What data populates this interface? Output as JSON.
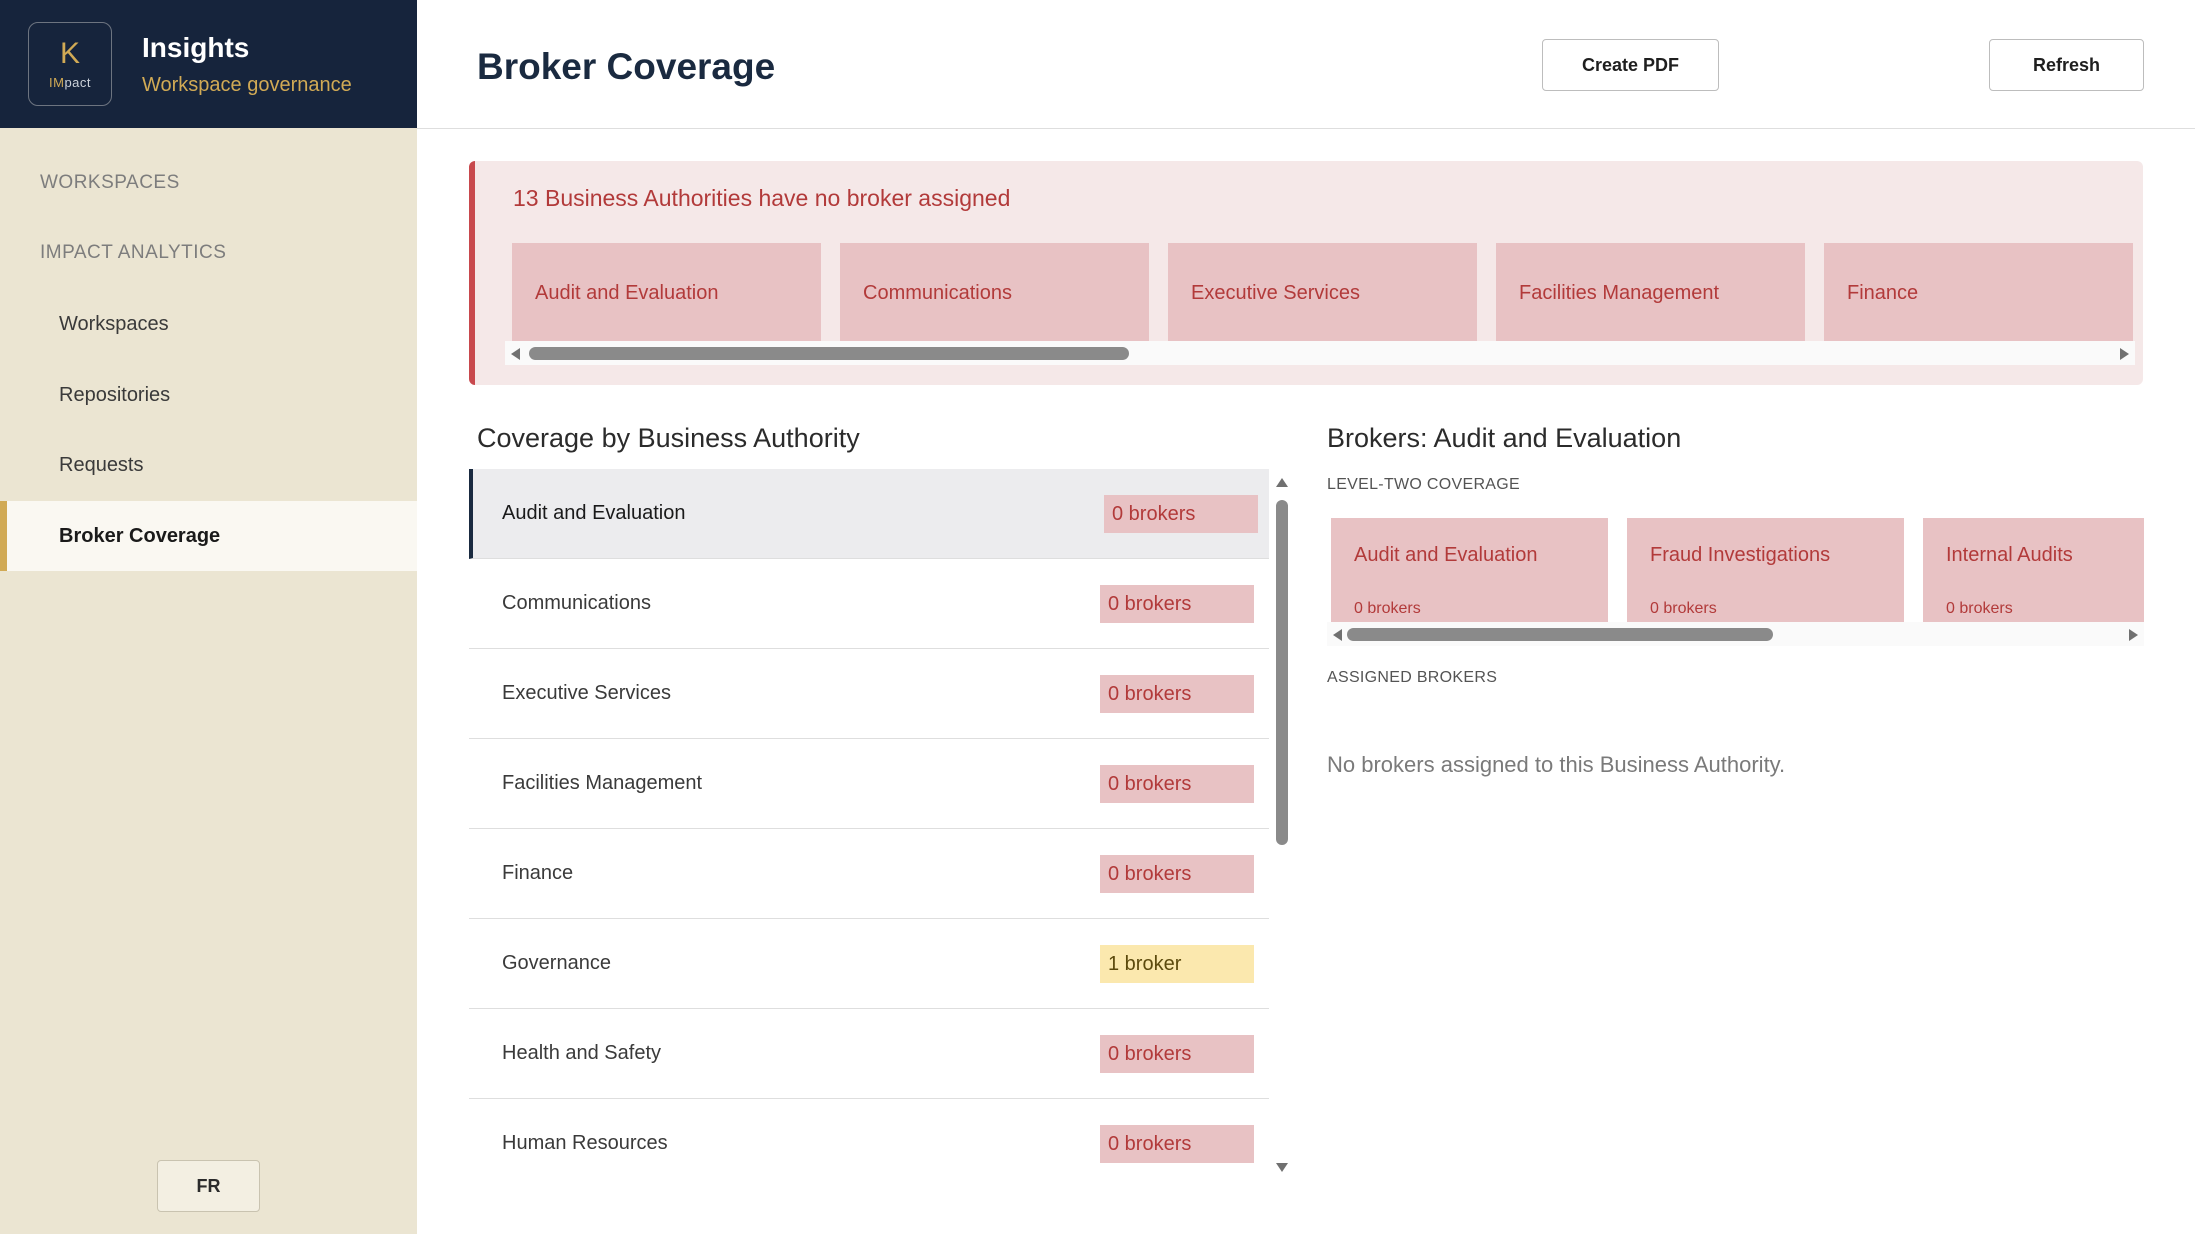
{
  "sidebar": {
    "logo": {
      "letter": "K",
      "sub_prefix": "IM",
      "sub_rest": "pact"
    },
    "app_title": "Insights",
    "app_subtitle": "Workspace governance",
    "sections": [
      "WORKSPACES",
      "IMPACT ANALYTICS"
    ],
    "items": [
      {
        "label": "Workspaces",
        "active": false
      },
      {
        "label": "Repositories",
        "active": false
      },
      {
        "label": "Requests",
        "active": false
      },
      {
        "label": "Broker Coverage",
        "active": true
      }
    ],
    "language_button": "FR"
  },
  "header": {
    "title": "Broker Coverage",
    "create_pdf_label": "Create PDF",
    "refresh_label": "Refresh"
  },
  "alert": {
    "title": "13 Business Authorities have no broker assigned",
    "cards": [
      "Audit and Evaluation",
      "Communications",
      "Executive Services",
      "Facilities Management",
      "Finance"
    ]
  },
  "coverage": {
    "title": "Coverage by Business Authority",
    "rows": [
      {
        "name": "Audit and Evaluation",
        "badge": "0 brokers",
        "status": "none",
        "selected": true
      },
      {
        "name": "Communications",
        "badge": "0 brokers",
        "status": "none",
        "selected": false
      },
      {
        "name": "Executive Services",
        "badge": "0 brokers",
        "status": "none",
        "selected": false
      },
      {
        "name": "Facilities Management",
        "badge": "0 brokers",
        "status": "none",
        "selected": false
      },
      {
        "name": "Finance",
        "badge": "0 brokers",
        "status": "none",
        "selected": false
      },
      {
        "name": "Governance",
        "badge": "1 broker",
        "status": "warn",
        "selected": false
      },
      {
        "name": "Health and Safety",
        "badge": "0 brokers",
        "status": "none",
        "selected": false
      },
      {
        "name": "Human Resources",
        "badge": "0 brokers",
        "status": "none",
        "selected": false
      }
    ]
  },
  "brokers": {
    "title": "Brokers: Audit and Evaluation",
    "level_two_label": "LEVEL-TWO COVERAGE",
    "level_two_cards": [
      {
        "name": "Audit and Evaluation",
        "count": "0 brokers"
      },
      {
        "name": "Fraud Investigations",
        "count": "0 brokers"
      },
      {
        "name": "Internal Audits",
        "count": "0 brokers"
      }
    ],
    "assigned_label": "ASSIGNED BROKERS",
    "empty_message": "No brokers assigned to this Business Authority."
  },
  "colors": {
    "brand_navy": "#16243c",
    "accent_gold": "#d1aa55",
    "danger_text": "#b23a3a",
    "danger_fill": "#e8c2c4",
    "warn_fill": "#fbe8ae"
  }
}
